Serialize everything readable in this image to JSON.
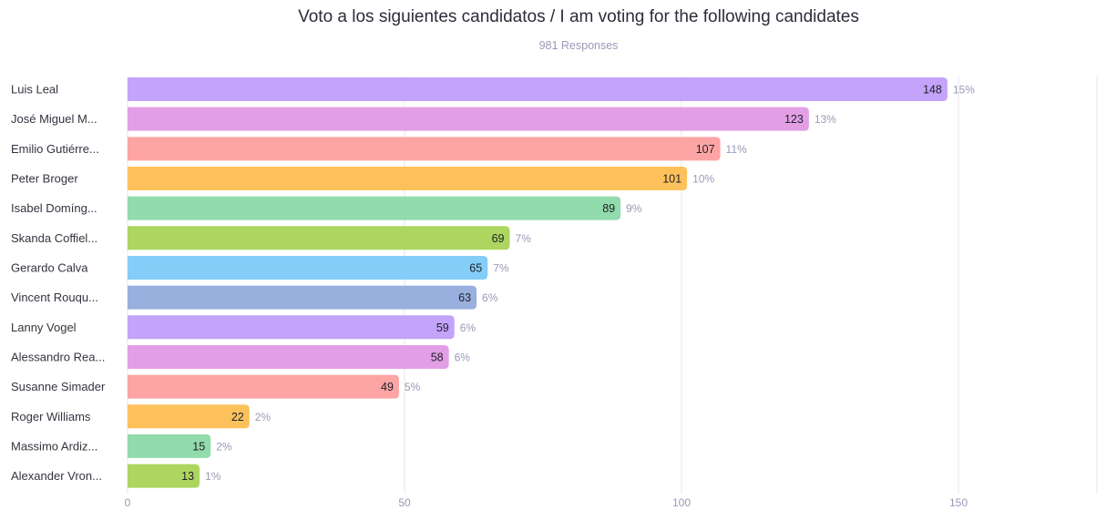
{
  "chart_data": {
    "type": "bar",
    "orientation": "horizontal",
    "title": "Voto a los siguientes candidatos / I am voting for the following candidates",
    "subtitle": "981 Responses",
    "categories": [
      "Luis Leal",
      "José Miguel M...",
      "Emilio Gutiérre...",
      "Peter Broger",
      "Isabel Domíng...",
      "Skanda Coffiel...",
      "Gerardo Calva",
      "Vincent Rouqu...",
      "Lanny Vogel",
      "Alessandro Rea...",
      "Susanne Simader",
      "Roger Williams",
      "Massimo Ardiz...",
      "Alexander Vron..."
    ],
    "values": [
      148,
      123,
      107,
      101,
      89,
      69,
      65,
      63,
      59,
      58,
      49,
      22,
      15,
      13
    ],
    "percent_labels": [
      "15%",
      "13%",
      "11%",
      "10%",
      "9%",
      "7%",
      "7%",
      "6%",
      "6%",
      "6%",
      "5%",
      "2%",
      "2%",
      "1%"
    ],
    "colors": [
      "#c4a3fb",
      "#e29fe6",
      "#fda4a4",
      "#fdc15c",
      "#92dbac",
      "#acd660",
      "#83cdf8",
      "#99afdd",
      "#c4a3fb",
      "#e29fe6",
      "#fda4a4",
      "#fdc15c",
      "#92dbac",
      "#acd660"
    ],
    "xlim": [
      0,
      175
    ],
    "x_ticks": [
      0,
      50,
      100,
      150
    ],
    "grid": true
  }
}
